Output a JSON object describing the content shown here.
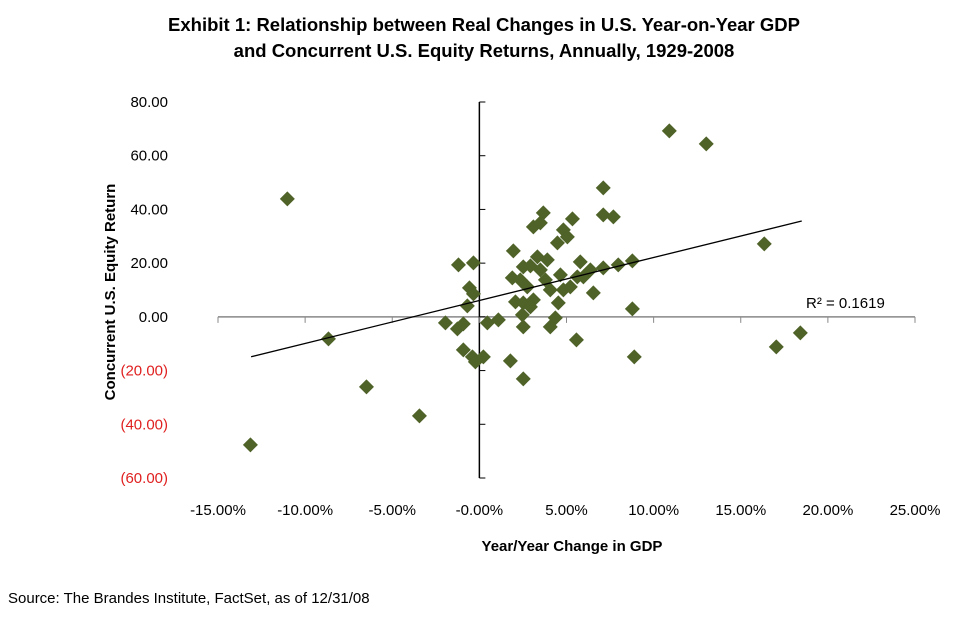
{
  "chart_data": {
    "type": "scatter",
    "title": "Exhibit 1:  Relationship between Real Changes in U.S. Year-on-Year GDP",
    "title_line2": "and Concurrent U.S. Equity Returns, Annually, 1929-2008",
    "xlabel": "Year/Year Change in GDP",
    "ylabel": "Concurrent U.S. Equity Return",
    "xlim": [
      -15,
      25
    ],
    "ylim": [
      -60,
      80
    ],
    "x_ticks": [
      -15,
      -10,
      -5,
      0,
      5,
      10,
      15,
      20,
      25
    ],
    "x_tick_labels": [
      "-15.00%",
      "-10.00%",
      "-5.00%",
      "-0.00%",
      "5.00%",
      "10.00%",
      "15.00%",
      "20.00%",
      "25.00%"
    ],
    "y_ticks": [
      80,
      60,
      40,
      20,
      0,
      -20,
      -40,
      -60
    ],
    "y_tick_labels": [
      "80.00",
      "60.00",
      "40.00",
      "20.00",
      "0.00",
      "(20.00)",
      "(40.00)",
      "(60.00)"
    ],
    "negative_label_color": "#e02020",
    "marker": "diamond",
    "marker_color": "#4f6228",
    "grid": false,
    "trendline": {
      "type": "linear",
      "slope": 1.6,
      "intercept": 6.1,
      "x_range": [
        -13.1,
        18.5
      ],
      "label": "R² = 0.1619"
    },
    "points": [
      [
        -13.14,
        -47.65
      ],
      [
        -11.02,
        43.92
      ],
      [
        -8.66,
        -8.19
      ],
      [
        -6.48,
        -26.06
      ],
      [
        -3.44,
        -36.86
      ],
      [
        -1.2,
        19.36
      ],
      [
        -0.34,
        20.1
      ],
      [
        -0.57,
        10.8
      ],
      [
        -0.34,
        8.56
      ],
      [
        -0.69,
        4.1
      ],
      [
        -1.95,
        -2.23
      ],
      [
        -1.26,
        -4.47
      ],
      [
        -0.92,
        -2.61
      ],
      [
        -0.92,
        -12.29
      ],
      [
        -0.4,
        -14.89
      ],
      [
        -0.23,
        -16.75
      ],
      [
        0.23,
        -14.89
      ],
      [
        0.46,
        -2.23
      ],
      [
        1.09,
        -1.12
      ],
      [
        1.78,
        -16.38
      ],
      [
        2.52,
        -23.08
      ],
      [
        2.52,
        -3.72
      ],
      [
        1.95,
        24.57
      ],
      [
        2.52,
        18.62
      ],
      [
        2.93,
        18.99
      ],
      [
        1.89,
        14.52
      ],
      [
        2.35,
        13.78
      ],
      [
        2.75,
        11.17
      ],
      [
        2.07,
        5.58
      ],
      [
        2.52,
        5.21
      ],
      [
        3.1,
        6.33
      ],
      [
        2.93,
        3.72
      ],
      [
        2.47,
        0.74
      ],
      [
        3.1,
        33.51
      ],
      [
        3.67,
        38.72
      ],
      [
        3.5,
        35.0
      ],
      [
        3.33,
        22.34
      ],
      [
        3.9,
        21.22
      ],
      [
        3.5,
        17.5
      ],
      [
        3.79,
        13.78
      ],
      [
        4.07,
        10.05
      ],
      [
        4.65,
        15.64
      ],
      [
        4.53,
        5.21
      ],
      [
        4.36,
        -0.37
      ],
      [
        4.07,
        -3.72
      ],
      [
        4.48,
        27.55
      ],
      [
        4.82,
        32.39
      ],
      [
        5.05,
        29.78
      ],
      [
        5.34,
        36.49
      ],
      [
        4.82,
        10.05
      ],
      [
        5.22,
        11.17
      ],
      [
        5.79,
        20.48
      ],
      [
        5.62,
        14.89
      ],
      [
        5.97,
        14.89
      ],
      [
        6.37,
        17.5
      ],
      [
        7.11,
        18.24
      ],
      [
        7.97,
        19.36
      ],
      [
        8.78,
        20.85
      ],
      [
        7.11,
        48.03
      ],
      [
        7.11,
        37.97
      ],
      [
        7.69,
        37.23
      ],
      [
        6.54,
        8.94
      ],
      [
        8.78,
        2.98
      ],
      [
        5.57,
        -8.56
      ],
      [
        8.89,
        -14.89
      ],
      [
        10.9,
        69.25
      ],
      [
        13.02,
        64.41
      ],
      [
        16.35,
        27.18
      ],
      [
        17.04,
        -11.17
      ],
      [
        18.42,
        -5.96
      ]
    ]
  },
  "source": "Source:  The Brandes Institute, FactSet, as of 12/31/08"
}
